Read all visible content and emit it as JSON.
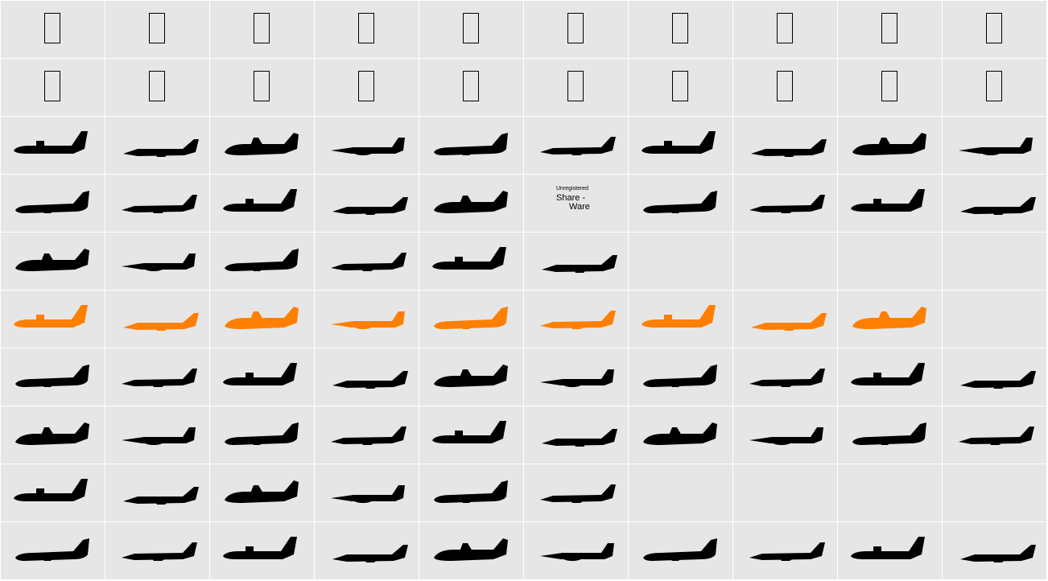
{
  "grid": {
    "columns": 10,
    "rows": 10
  },
  "colors": {
    "cell_background": "#e6e6e6",
    "grid_line": "#ffffff",
    "glyph": "#000000",
    "highlight_glyph": "#ff7f00"
  },
  "shareware_notice": {
    "small": "Unregistered",
    "line1": "Share -",
    "line2": "Ware"
  },
  "rows": [
    {
      "row": 1,
      "cells": [
        "box",
        "box",
        "box",
        "box",
        "box",
        "box",
        "box",
        "box",
        "box",
        "box"
      ]
    },
    {
      "row": 2,
      "cells": [
        "box",
        "box",
        "box",
        "box",
        "box",
        "box",
        "box",
        "box",
        "box",
        "box"
      ]
    },
    {
      "row": 3,
      "cells": [
        "plane",
        "plane",
        "plane",
        "plane",
        "plane",
        "plane",
        "plane",
        "plane",
        "plane",
        "plane"
      ]
    },
    {
      "row": 4,
      "cells": [
        "plane",
        "plane",
        "plane",
        "plane",
        "plane",
        "notice",
        "plane",
        "plane",
        "plane",
        "plane"
      ]
    },
    {
      "row": 5,
      "cells": [
        "plane",
        "plane",
        "plane",
        "plane",
        "plane",
        "plane",
        "empty",
        "empty",
        "empty",
        "empty"
      ]
    },
    {
      "row": 6,
      "cells": [
        "plane-orange",
        "plane-orange",
        "plane-orange",
        "plane-orange",
        "plane-orange",
        "plane-orange",
        "plane-orange",
        "plane-orange",
        "plane-orange",
        "empty"
      ]
    },
    {
      "row": 7,
      "cells": [
        "plane",
        "plane",
        "plane",
        "plane",
        "plane",
        "plane",
        "plane",
        "plane",
        "plane",
        "plane"
      ]
    },
    {
      "row": 8,
      "cells": [
        "plane",
        "plane",
        "plane",
        "plane",
        "plane",
        "plane",
        "plane",
        "plane",
        "plane",
        "plane"
      ]
    },
    {
      "row": 9,
      "cells": [
        "plane",
        "plane",
        "plane",
        "plane",
        "plane",
        "plane",
        "empty",
        "empty",
        "empty",
        "empty"
      ]
    },
    {
      "row": 10,
      "cells": [
        "plane",
        "plane",
        "plane",
        "plane",
        "plane",
        "plane",
        "plane",
        "plane",
        "plane",
        "plane"
      ]
    }
  ]
}
